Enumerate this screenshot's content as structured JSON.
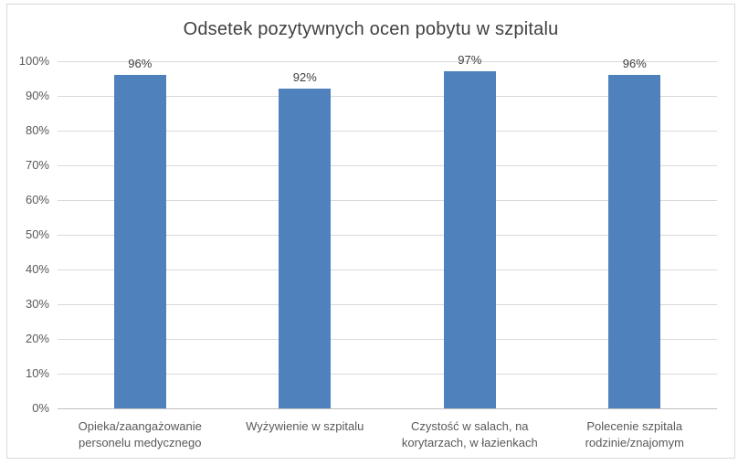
{
  "chart_data": {
    "type": "bar",
    "title": "Odsetek pozytywnych ocen pobytu w szpitalu",
    "categories": [
      "Opieka/zaangażowanie personelu medycznego",
      "Wyżywienie w szpitalu",
      "Czystość w salach, na korytarzach, w łazienkach",
      "Polecenie szpitala rodzinie/znajomym"
    ],
    "values": [
      96,
      92,
      97,
      96
    ],
    "data_labels": [
      "96%",
      "92%",
      "97%",
      "96%"
    ],
    "xlabel": "",
    "ylabel": "",
    "ylim": [
      0,
      100
    ],
    "ytick_step": 10,
    "ytick_labels": [
      "0%",
      "10%",
      "20%",
      "30%",
      "40%",
      "50%",
      "60%",
      "70%",
      "80%",
      "90%",
      "100%"
    ],
    "grid": true,
    "legend": "none",
    "colors": {
      "bar": "#4F81BD",
      "gridline": "#D9D9D9",
      "axis_line": "#BFBFBF",
      "chart_border": "#D9D9D9",
      "title_text": "#404040",
      "axis_text": "#595959",
      "data_label_text": "#404040",
      "background": "#FFFFFF"
    }
  }
}
